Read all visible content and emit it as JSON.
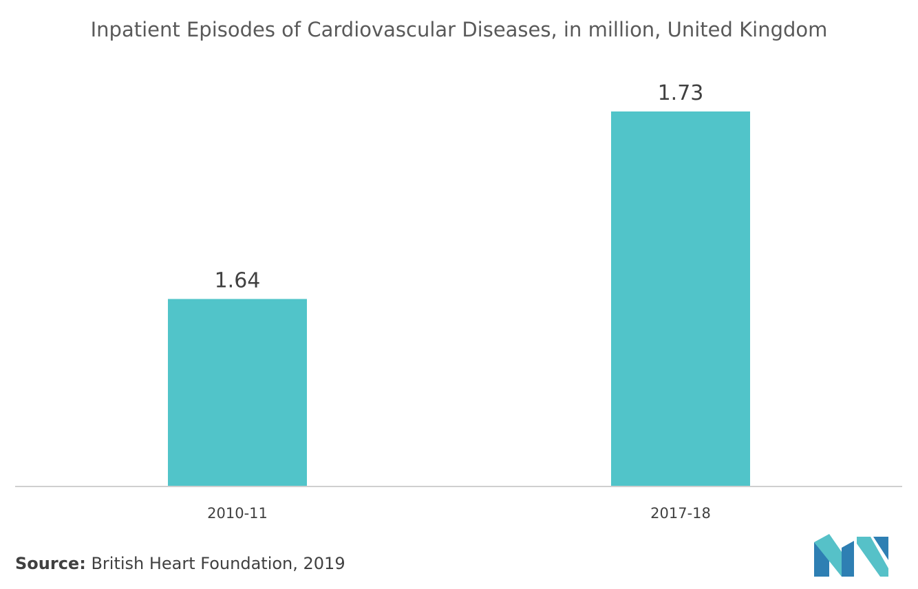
{
  "chart_data": {
    "type": "bar",
    "title": "Inpatient Episodes of Cardiovascular Diseases, in million, United Kingdom",
    "categories": [
      "2010-11",
      "2017-18"
    ],
    "values": [
      1.64,
      1.73
    ],
    "data_labels": [
      "1.64",
      "1.73"
    ],
    "xlabel": "",
    "ylabel": "",
    "grid": false,
    "legend": "none"
  },
  "colors": {
    "bar": "#51c4c9",
    "logo_dark": "#2e7fb3",
    "logo_light": "#56c1c8"
  },
  "source": {
    "label": "Source:",
    "text": "British Heart Foundation, 2019"
  },
  "logo": {
    "icon": "mordor-logo-icon"
  }
}
